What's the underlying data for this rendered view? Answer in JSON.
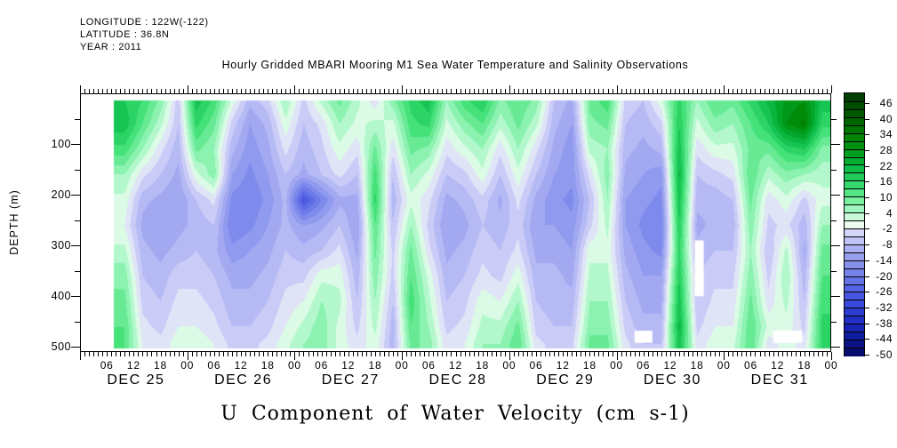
{
  "header": {
    "lines": [
      "LONGITUDE : 122W(-122)",
      "LATITUDE : 36.8N",
      "YEAR : 2011"
    ]
  },
  "title": "Hourly Gridded MBARI Mooring M1 Sea Water Temperature and Salinity Observations",
  "footer_title": "U Component of Water Velocity (cm s-1)",
  "y_axis": {
    "label": "DEPTH (m)",
    "major_ticks": [
      100,
      200,
      300,
      400,
      500
    ],
    "minor_step": 50,
    "range": [
      0,
      510
    ]
  },
  "x_axis": {
    "hour_cycle": [
      "06",
      "12",
      "18",
      "00"
    ],
    "day_labels": [
      "DEC 25",
      "DEC 26",
      "DEC 27",
      "DEC 28",
      "DEC 29",
      "DEC 30",
      "DEC 31"
    ],
    "hours_total": 168
  },
  "colorbar": {
    "tick_labels": [
      46,
      40,
      34,
      28,
      22,
      16,
      10,
      4,
      -2,
      -8,
      -14,
      -20,
      -26,
      -32,
      -38,
      -44,
      -50
    ],
    "vmax": 50,
    "vmin": -50,
    "segments": 33
  },
  "chart_data": {
    "type": "heatmap",
    "title": "Hourly Gridded MBARI Mooring M1 Sea Water Temperature and Salinity Observations",
    "variable": "U Component of Water Velocity (cm s-1)",
    "x_hours": [
      10,
      14,
      18,
      22,
      26,
      30,
      34,
      38,
      42,
      46,
      50,
      54,
      58,
      62,
      66,
      70,
      74,
      78,
      82,
      86,
      90,
      94,
      98,
      102,
      106,
      110,
      114,
      118,
      122,
      126,
      130,
      134,
      138,
      142,
      146,
      150,
      154,
      158,
      162,
      166
    ],
    "x_hours_origin": "2011 DEC 25 00:00",
    "data_hour_range": [
      7.5,
      168
    ],
    "y_depths_m": [
      15,
      60,
      110,
      160,
      210,
      260,
      310,
      360,
      410,
      460,
      495
    ],
    "data_depth_range": [
      14,
      503
    ],
    "values_cm_per_s": [
      [
        18,
        15,
        8,
        -5,
        20,
        14,
        2,
        -8,
        -4,
        6,
        -4,
        4,
        10,
        4,
        -2,
        8,
        16,
        20,
        6,
        14,
        18,
        8,
        12,
        8,
        -6,
        -10,
        10,
        14,
        -4,
        -6,
        2,
        16,
        6,
        12,
        10,
        16,
        22,
        28,
        30,
        20
      ],
      [
        20,
        12,
        4,
        -6,
        16,
        10,
        -4,
        -12,
        -8,
        2,
        -6,
        -2,
        6,
        2,
        4,
        2,
        14,
        16,
        2,
        8,
        12,
        4,
        10,
        4,
        -8,
        -12,
        8,
        10,
        -6,
        -8,
        -4,
        18,
        2,
        8,
        6,
        12,
        18,
        30,
        34,
        16
      ],
      [
        14,
        6,
        -2,
        -8,
        10,
        6,
        -8,
        -14,
        -10,
        -2,
        -8,
        -4,
        2,
        -2,
        10,
        -2,
        10,
        8,
        -2,
        2,
        6,
        -2,
        6,
        -2,
        -10,
        -14,
        4,
        6,
        -8,
        -10,
        -8,
        20,
        -2,
        2,
        2,
        10,
        10,
        16,
        18,
        8
      ],
      [
        6,
        -2,
        -6,
        -10,
        2,
        8,
        -12,
        -16,
        -12,
        -6,
        -10,
        -6,
        -2,
        -6,
        14,
        -6,
        6,
        2,
        -6,
        -4,
        2,
        -6,
        2,
        -6,
        -12,
        -14,
        -2,
        8,
        -10,
        -12,
        -14,
        22,
        -6,
        -4,
        -2,
        12,
        4,
        8,
        6,
        4
      ],
      [
        2,
        -8,
        -10,
        -12,
        -6,
        -2,
        -16,
        -18,
        -14,
        -8,
        -28,
        -18,
        -10,
        -10,
        16,
        -8,
        2,
        -2,
        -10,
        -8,
        -4,
        -10,
        -2,
        -10,
        -14,
        -16,
        -6,
        6,
        -12,
        -14,
        -16,
        20,
        -8,
        -8,
        -6,
        10,
        -2,
        2,
        -4,
        2
      ],
      [
        0,
        -10,
        -12,
        -10,
        -8,
        -6,
        -18,
        -16,
        -12,
        -8,
        -12,
        -10,
        -6,
        -12,
        12,
        -6,
        6,
        -4,
        -12,
        -10,
        -6,
        -8,
        -4,
        -12,
        -12,
        -14,
        -4,
        4,
        -12,
        -16,
        -18,
        18,
        -10,
        -8,
        -8,
        8,
        -4,
        -2,
        -8,
        6
      ],
      [
        4,
        -8,
        -10,
        -8,
        -6,
        -8,
        -14,
        -12,
        -10,
        -6,
        -8,
        -6,
        -2,
        -10,
        10,
        -4,
        10,
        -2,
        -10,
        -8,
        -4,
        -6,
        -2,
        -10,
        -10,
        -12,
        2,
        2,
        -10,
        -14,
        -16,
        16,
        -8,
        -6,
        -6,
        6,
        -6,
        4,
        -10,
        10
      ],
      [
        8,
        -6,
        -8,
        -4,
        -4,
        -6,
        -10,
        -10,
        -8,
        -4,
        -4,
        2,
        2,
        -8,
        8,
        -4,
        12,
        2,
        -8,
        -6,
        -2,
        -4,
        2,
        -8,
        -8,
        -10,
        4,
        4,
        -8,
        -12,
        -12,
        18,
        -6,
        -4,
        -4,
        8,
        -4,
        6,
        -8,
        12
      ],
      [
        10,
        -4,
        -6,
        -2,
        -2,
        -4,
        -8,
        -8,
        -6,
        -2,
        0,
        6,
        4,
        -6,
        6,
        -6,
        14,
        4,
        -6,
        -4,
        2,
        0,
        6,
        -6,
        -8,
        -8,
        6,
        6,
        -6,
        -10,
        -10,
        20,
        -6,
        -2,
        -2,
        10,
        -2,
        4,
        -6,
        14
      ],
      [
        12,
        -2,
        -4,
        0,
        0,
        -2,
        -6,
        -6,
        -4,
        0,
        4,
        8,
        2,
        -4,
        4,
        -8,
        12,
        6,
        -4,
        -2,
        4,
        4,
        10,
        -4,
        -6,
        -6,
        8,
        8,
        -4,
        -8,
        -8,
        22,
        -4,
        0,
        0,
        12,
        2,
        2,
        -4,
        16
      ],
      [
        12,
        0,
        -2,
        2,
        2,
        0,
        -4,
        -4,
        -2,
        2,
        6,
        8,
        2,
        -2,
        2,
        -8,
        10,
        8,
        -2,
        0,
        6,
        6,
        12,
        -2,
        -4,
        -4,
        10,
        10,
        -2,
        -6,
        -6,
        20,
        -2,
        2,
        2,
        12,
        -2,
        2,
        -2,
        16
      ]
    ],
    "missing_data": [
      {
        "hours": [
          137.5,
          139.5
        ],
        "depths": [
          290,
          400
        ]
      },
      {
        "hours": [
          124,
          128
        ],
        "depths": [
          468,
          492
        ]
      },
      {
        "hours": [
          155,
          161.5
        ],
        "depths": [
          468,
          492
        ]
      }
    ],
    "colormap": [
      {
        "v": 50,
        "c": "#003600"
      },
      {
        "v": 44,
        "c": "#005200"
      },
      {
        "v": 38,
        "c": "#006e00"
      },
      {
        "v": 32,
        "c": "#008a06"
      },
      {
        "v": 26,
        "c": "#00a426"
      },
      {
        "v": 20,
        "c": "#12c250"
      },
      {
        "v": 14,
        "c": "#3fdf74"
      },
      {
        "v": 9,
        "c": "#79efa2"
      },
      {
        "v": 5,
        "c": "#abf7c7"
      },
      {
        "v": 2,
        "c": "#d7fbe3"
      },
      {
        "v": 0,
        "c": "#ecfcf0"
      },
      {
        "v": -2,
        "c": "#dcdcf9"
      },
      {
        "v": -5,
        "c": "#c6c9f6"
      },
      {
        "v": -9,
        "c": "#abb1f2"
      },
      {
        "v": -14,
        "c": "#8d97ee"
      },
      {
        "v": -20,
        "c": "#6b79e8"
      },
      {
        "v": -26,
        "c": "#4c5ce2"
      },
      {
        "v": -32,
        "c": "#3140d6"
      },
      {
        "v": -38,
        "c": "#1b28bd"
      },
      {
        "v": -44,
        "c": "#0d1693"
      },
      {
        "v": -50,
        "c": "#050b60"
      }
    ]
  }
}
